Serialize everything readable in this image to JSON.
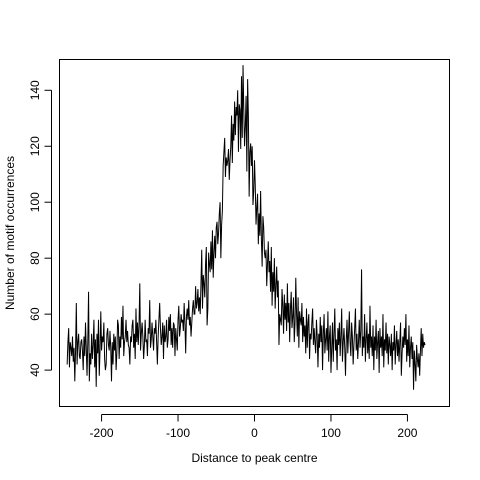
{
  "chart_data": {
    "type": "line",
    "title": "",
    "xlabel": "Distance to peak centre",
    "ylabel": "Number of motif occurrences",
    "xlim": [
      -255,
      255
    ],
    "ylim": [
      27,
      151
    ],
    "x_ticks": [
      -200,
      -100,
      0,
      100,
      200
    ],
    "y_ticks": [
      40,
      60,
      80,
      100,
      120,
      140
    ],
    "x_tick_labels": [
      "-200",
      "-100",
      "0",
      "100",
      "200"
    ],
    "y_tick_labels": [
      "40",
      "60",
      "80",
      "100",
      "120",
      "140"
    ],
    "grid": false,
    "series": [
      {
        "x_start": -245,
        "x_step": 1,
        "values": [
          42,
          50,
          55,
          41,
          50,
          48,
          45,
          52,
          43,
          48,
          36,
          47,
          64,
          42,
          50,
          53,
          45,
          44,
          50,
          51,
          47,
          40,
          52,
          45,
          57,
          48,
          38,
          50,
          68,
          36,
          46,
          42,
          53,
          44,
          49,
          58,
          41,
          51,
          34,
          53,
          46,
          58,
          38,
          47,
          61,
          47,
          52,
          50,
          57,
          44,
          40,
          42,
          53,
          55,
          49,
          47,
          54,
          48,
          36,
          50,
          42,
          53,
          47,
          52,
          40,
          46,
          58,
          56,
          44,
          52,
          48,
          59,
          51,
          63,
          45,
          50,
          52,
          58,
          50,
          54,
          49,
          48,
          42,
          52,
          50,
          56,
          58,
          48,
          53,
          44,
          62,
          50,
          57,
          49,
          56,
          71,
          47,
          53,
          57,
          52,
          44,
          49,
          58,
          50,
          51,
          45,
          55,
          53,
          65,
          48,
          51,
          57,
          52,
          47,
          55,
          53,
          58,
          50,
          42,
          52,
          58,
          64,
          55,
          49,
          52,
          57,
          44,
          56,
          50,
          52,
          58,
          48,
          51,
          59,
          54,
          60,
          49,
          55,
          48,
          57,
          56,
          45,
          55,
          51,
          47,
          58,
          63,
          52,
          55,
          60,
          57,
          58,
          54,
          64,
          57,
          46,
          59,
          62,
          58,
          65,
          56,
          59,
          52,
          57,
          62,
          65,
          60,
          60,
          70,
          62,
          64,
          69,
          61,
          66,
          60,
          71,
          83,
          62,
          74,
          71,
          66,
          78,
          84,
          56,
          62,
          82,
          78,
          75,
          86,
          76,
          90,
          73,
          82,
          88,
          80,
          91,
          93,
          85,
          89,
          96,
          100,
          80,
          92,
          97,
          113,
          118,
          123,
          109,
          116,
          113,
          115,
          119,
          108,
          115,
          120,
          131,
          114,
          128,
          122,
          136,
          124,
          134,
          131,
          140,
          118,
          135,
          133,
          119,
          145,
          123,
          149,
          133,
          120,
          127,
          138,
          111,
          144,
          131,
          102,
          118,
          121,
          113,
          120,
          99,
          104,
          115,
          106,
          92,
          98,
          103,
          85,
          96,
          88,
          104,
          87,
          77,
          95,
          91,
          82,
          80,
          83,
          70,
          78,
          86,
          75,
          79,
          68,
          84,
          63,
          75,
          68,
          80,
          62,
          70,
          77,
          66,
          72,
          49,
          60,
          58,
          56,
          69,
          63,
          53,
          67,
          58,
          64,
          54,
          71,
          57,
          64,
          50,
          62,
          68,
          55,
          59,
          66,
          50,
          57,
          73,
          60,
          52,
          66,
          48,
          61,
          58,
          56,
          64,
          50,
          59,
          52,
          56,
          46,
          62,
          48,
          57,
          60,
          44,
          53,
          51,
          57,
          62,
          49,
          55,
          50,
          46,
          58,
          52,
          41,
          53,
          48,
          59,
          50,
          56,
          40,
          53,
          60,
          46,
          51,
          55,
          47,
          61,
          43,
          52,
          56,
          39,
          48,
          57,
          43,
          53,
          62,
          47,
          51,
          40,
          55,
          49,
          57,
          45,
          52,
          62,
          43,
          50,
          55,
          48,
          38,
          51,
          58,
          46,
          53,
          61,
          50,
          45,
          57,
          52,
          42,
          49,
          55,
          62,
          47,
          53,
          44,
          50,
          58,
          48,
          54,
          76,
          45,
          52,
          48,
          60,
          43,
          51,
          57,
          46,
          53,
          44,
          63,
          48,
          52,
          45,
          56,
          40,
          52,
          47,
          58,
          44,
          50,
          54,
          39,
          55,
          48,
          52,
          45,
          60,
          41,
          51,
          47,
          57,
          46,
          53,
          42,
          52,
          49,
          45,
          53,
          40,
          50,
          47,
          56,
          42,
          49,
          54,
          45,
          51,
          43,
          50,
          57,
          38,
          46,
          52,
          48,
          55,
          49,
          60,
          43,
          51,
          45,
          56,
          41,
          48,
          52,
          44,
          50,
          33,
          47,
          42,
          36,
          49,
          44,
          41,
          46,
          38,
          47,
          55,
          45,
          53,
          48,
          50,
          49
        ]
      }
    ]
  }
}
